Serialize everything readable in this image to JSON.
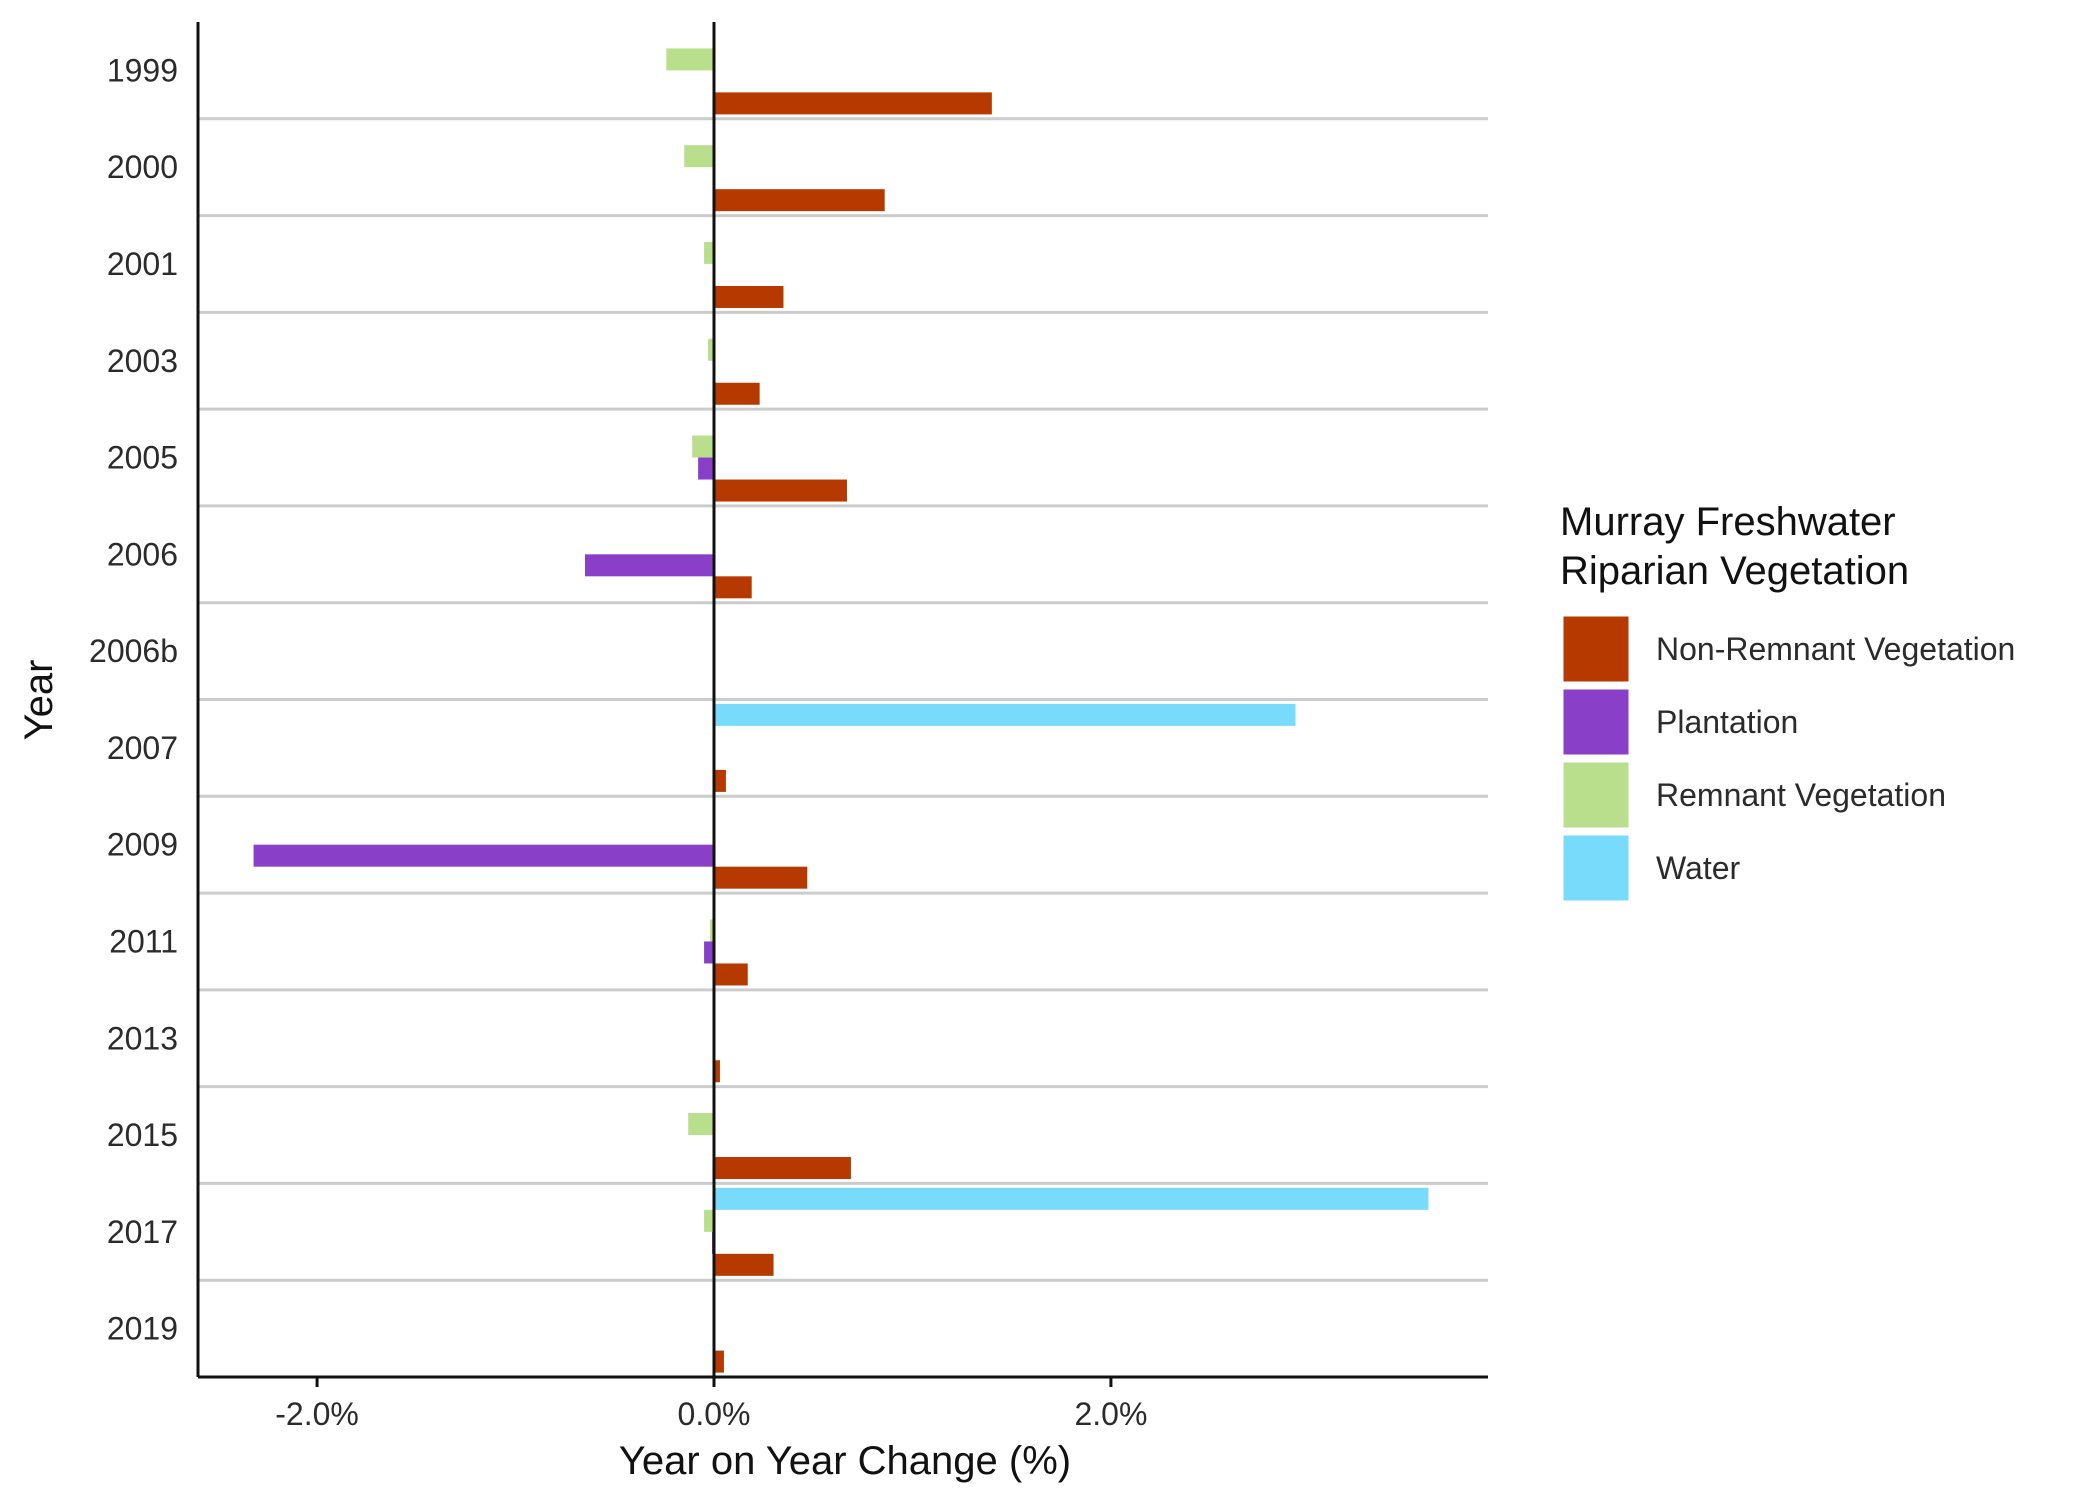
{
  "chart_data": {
    "type": "bar",
    "orientation": "horizontal",
    "xlabel": "Year on Year Change (%)",
    "ylabel": "Year",
    "xlim": [
      -2.6,
      3.9
    ],
    "x_ticks": [
      -2.0,
      0.0,
      2.0
    ],
    "x_tick_labels": [
      "-2.0%",
      "0.0%",
      "2.0%"
    ],
    "categories": [
      "1999",
      "2000",
      "2001",
      "2003",
      "2005",
      "2006",
      "2006b",
      "2007",
      "2009",
      "2011",
      "2013",
      "2015",
      "2017",
      "2019"
    ],
    "legend": {
      "title_lines": [
        "Murray Freshwater",
        "Riparian Vegetation"
      ],
      "position": "right"
    },
    "series": [
      {
        "name": "Non-Remnant Vegetation",
        "color": "#b63a00",
        "values": [
          1.4,
          0.86,
          0.35,
          0.23,
          0.67,
          0.19,
          null,
          0.06,
          0.47,
          0.17,
          0.03,
          0.69,
          0.3,
          0.05
        ]
      },
      {
        "name": "Plantation",
        "color": "#8a3fc8",
        "values": [
          null,
          null,
          null,
          null,
          -0.08,
          -0.65,
          null,
          null,
          -2.32,
          -0.05,
          null,
          null,
          -0.01,
          null
        ]
      },
      {
        "name": "Remnant Vegetation",
        "color": "#b9df8d",
        "values": [
          -0.24,
          -0.15,
          -0.05,
          -0.03,
          -0.11,
          null,
          null,
          null,
          null,
          -0.02,
          null,
          -0.13,
          -0.05,
          null
        ]
      },
      {
        "name": "Water",
        "color": "#78dbfb",
        "values": [
          null,
          null,
          null,
          null,
          null,
          null,
          null,
          2.93,
          null,
          null,
          null,
          null,
          3.6,
          null
        ]
      }
    ]
  }
}
